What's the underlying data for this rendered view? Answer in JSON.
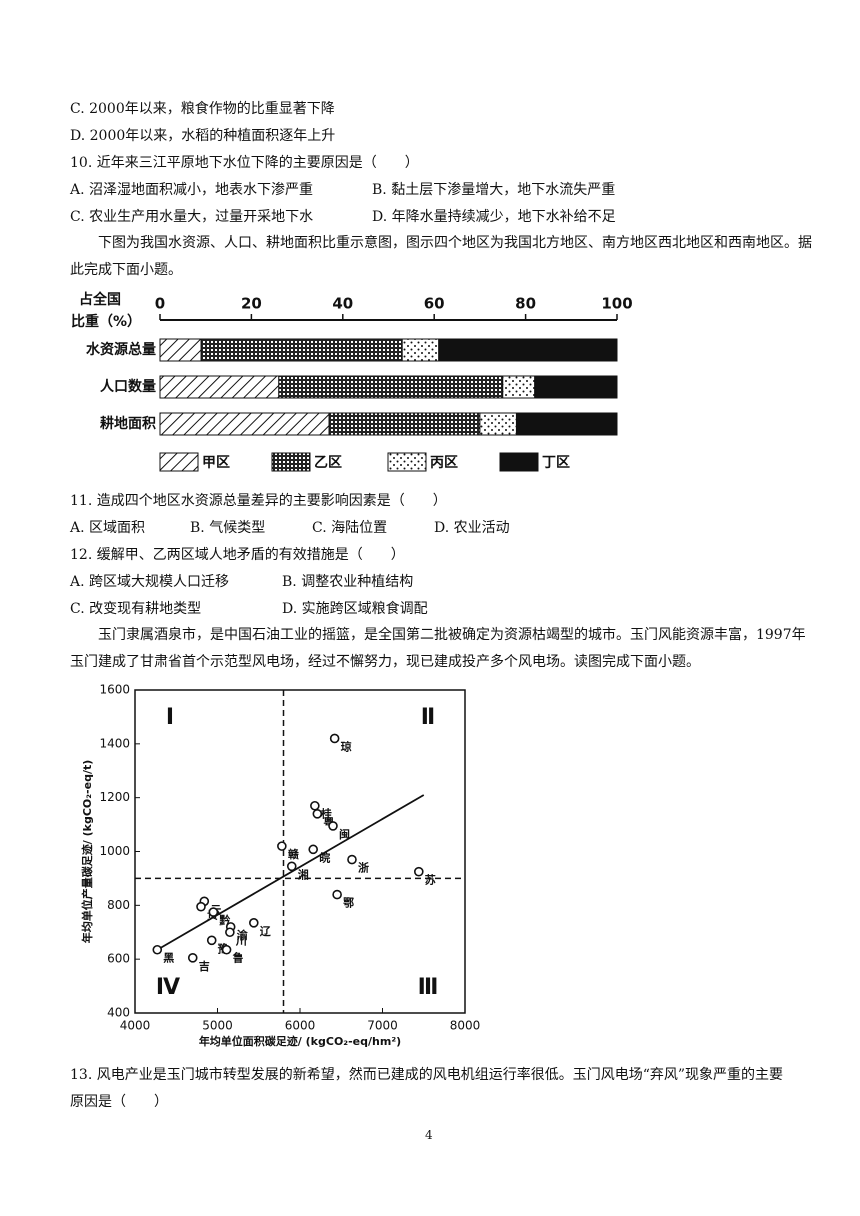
{
  "lines_top": [
    "C. 2000年以来，粮食作物的比重显著下降",
    "D. 2000年以来，水稻的种植面积逐年上升"
  ],
  "q10": {
    "stem": "10. 近年来三江平原地下水位下降的主要原因是（　　）",
    "options": [
      "A. 沼泽湿地面积减小，地表水下渗严重",
      "B. 黏土层下渗量增大，地下水流失严重",
      "C. 农业生产用水量大，过量开采地下水",
      "D. 年降水量持续减少，地下水补给不足"
    ]
  },
  "intro1": "下图为我国水资源、人口、耕地面积比重示意图，图示四个地区为我国北方地区、南方地区西北地区和西南地区。据此完成下面小题。",
  "chart_data": [
    {
      "type": "stacked-bar",
      "x_label_lines": [
        "占全国",
        "比重（%）"
      ],
      "categories": [
        "水资源总量",
        "人口数量",
        "耕地面积"
      ],
      "series": [
        {
          "name": "甲区",
          "color": "#111111",
          "pattern": "hatch",
          "values": [
            9,
            26,
            37
          ]
        },
        {
          "name": "乙区",
          "color": "#111111",
          "pattern": "grid",
          "values": [
            44,
            49,
            33
          ]
        },
        {
          "name": "丙区",
          "color": "#111111",
          "pattern": "dots",
          "values": [
            8,
            7,
            8
          ]
        },
        {
          "name": "丁区",
          "color": "#111111",
          "pattern": "solid",
          "values": [
            39,
            18,
            22
          ]
        }
      ],
      "xlim": [
        0,
        100
      ],
      "xticks": [
        0,
        20,
        40,
        60,
        80,
        100
      ]
    },
    {
      "type": "scatter",
      "x_label": "年均单位面积碳足迹/ (kgCO₂-eq/hm²)",
      "y_label": "年均单位产量碳足迹/ (kgCO₂-eq/t)",
      "quadrant_labels": [
        "Ⅰ",
        "Ⅱ",
        "Ⅲ",
        "Ⅳ"
      ],
      "labels": [
        "琼",
        "桂",
        "粤",
        "闽",
        "赣",
        "皖",
        "湘",
        "浙",
        "苏",
        "鄂",
        "云",
        "贵",
        "黔",
        "渝",
        "辽",
        "川",
        "豫",
        "鲁",
        "吉",
        "黑"
      ],
      "x": [
        6420,
        6180,
        6210,
        6400,
        5780,
        6160,
        5900,
        6630,
        7440,
        6450,
        4840,
        4800,
        4950,
        5160,
        5440,
        5150,
        4930,
        5110,
        4700,
        4270
      ],
      "y": [
        1420,
        1170,
        1140,
        1095,
        1020,
        1008,
        945,
        970,
        925,
        840,
        815,
        795,
        775,
        720,
        735,
        700,
        670,
        635,
        605,
        635
      ],
      "ref_x": 5800,
      "ref_y": 900,
      "trend": {
        "x": [
          4300,
          7500
        ],
        "y": [
          640,
          1210
        ]
      },
      "xlim": [
        4000,
        8000
      ],
      "xticks": [
        4000,
        5000,
        6000,
        7000,
        8000
      ],
      "ylim": [
        400,
        1600
      ],
      "yticks": [
        400,
        600,
        800,
        1000,
        1200,
        1400,
        1600
      ]
    }
  ],
  "q11": {
    "stem": "11. 造成四个地区水资源总量差异的主要影响因素是（　　）",
    "options": [
      "A. 区域面积",
      "B. 气候类型",
      "C. 海陆位置",
      "D. 农业活动"
    ]
  },
  "q12": {
    "stem": "12. 缓解甲、乙两区域人地矛盾的有效措施是（　　）",
    "options": [
      "A. 跨区域大规模人口迁移",
      "B. 调整农业种植结构",
      "C. 改变现有耕地类型",
      "D. 实施跨区域粮食调配"
    ]
  },
  "intro2": "玉门隶属酒泉市，是中国石油工业的摇篮，是全国第二批被确定为资源枯竭型的城市。玉门风能资源丰富，1997年玉门建成了甘肃省首个示范型风电场，经过不懈努力，现已建成投产多个风电场。读图完成下面小题。",
  "q13": "13. 风电产业是玉门城市转型发展的新希望，然而已建成的风电机组运行率很低。玉门风电场“弃风”现象严重的主要原因是（　　）",
  "page_number": "4"
}
